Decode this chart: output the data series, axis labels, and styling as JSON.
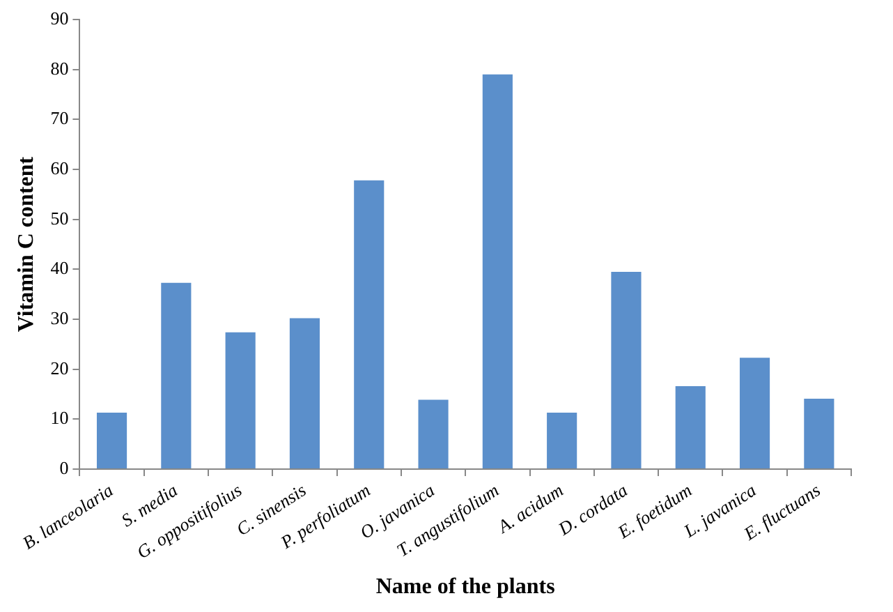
{
  "chart_data": {
    "type": "bar",
    "xlabel": "Name of the plants",
    "ylabel": "Vitamin C content",
    "categories": [
      "B. lanceolaria",
      "S. media",
      "G. oppositifolius",
      "C. sinensis",
      "P. perfoliatum",
      "O. javanica",
      "T. angustifolium",
      "A. acidum",
      "D. cordata",
      "E. foetidum",
      "L. javanica",
      "E. fluctuans"
    ],
    "values": [
      11.3,
      37.3,
      27.4,
      30.2,
      57.8,
      13.9,
      79,
      11.3,
      39.5,
      16.6,
      22.3,
      14.1
    ],
    "color": "#5b8fcb",
    "ylim": [
      0,
      90
    ],
    "yticks": [
      0,
      10,
      20,
      30,
      40,
      50,
      60,
      70,
      80,
      90
    ],
    "grid": false,
    "legend": false
  }
}
